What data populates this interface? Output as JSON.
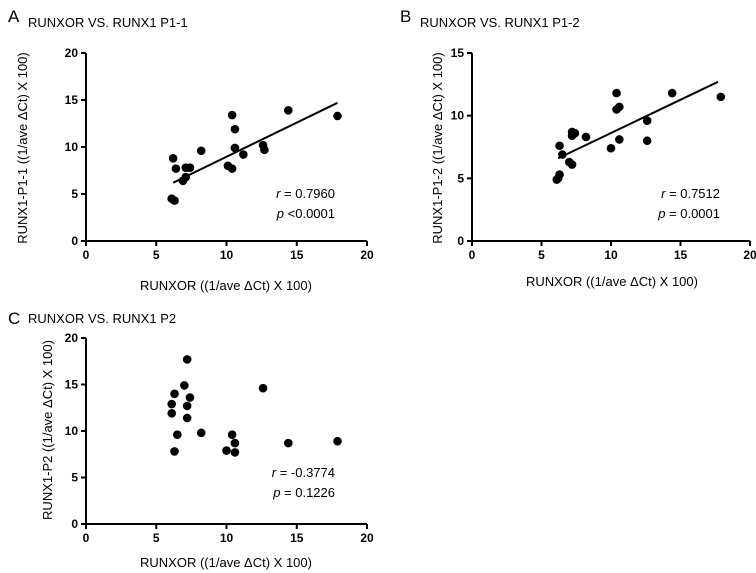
{
  "chart_data": [
    {
      "type": "scatter",
      "panel": "A",
      "title": "RUNXOR VS. RUNX1 P1-1",
      "xlabel": "RUNXOR ((1/ave ΔCt) X 100)",
      "ylabel": "RUNX1-P1-1 ((1/ave ΔCt) X 100)",
      "xlim": [
        0,
        20
      ],
      "ylim": [
        0,
        20
      ],
      "xticks": [
        0,
        5,
        10,
        15,
        20
      ],
      "yticks": [
        0,
        5,
        10,
        15,
        20
      ],
      "x_tick_labels": [
        "0",
        "5",
        "10",
        "15",
        "20"
      ],
      "y_tick_labels": [
        "0",
        "5",
        "10",
        "15",
        "20"
      ],
      "points": [
        {
          "x": 6.1,
          "y": 4.5
        },
        {
          "x": 6.3,
          "y": 4.3
        },
        {
          "x": 6.2,
          "y": 8.8
        },
        {
          "x": 6.4,
          "y": 7.7
        },
        {
          "x": 6.9,
          "y": 6.4
        },
        {
          "x": 7.1,
          "y": 6.8
        },
        {
          "x": 7.1,
          "y": 7.8
        },
        {
          "x": 7.4,
          "y": 7.8
        },
        {
          "x": 8.2,
          "y": 9.6
        },
        {
          "x": 10.1,
          "y": 8.0
        },
        {
          "x": 10.4,
          "y": 7.7
        },
        {
          "x": 10.4,
          "y": 13.4
        },
        {
          "x": 10.6,
          "y": 11.9
        },
        {
          "x": 10.6,
          "y": 9.9
        },
        {
          "x": 11.2,
          "y": 9.2
        },
        {
          "x": 12.6,
          "y": 10.2
        },
        {
          "x": 12.7,
          "y": 9.7
        },
        {
          "x": 14.4,
          "y": 13.9
        },
        {
          "x": 17.9,
          "y": 13.3
        }
      ],
      "fit_line": {
        "x": [
          6.2,
          17.9
        ],
        "y": [
          6.2,
          14.7
        ]
      },
      "stats": {
        "r_label": "r",
        "r_text": " = 0.7960",
        "p_label": "p",
        "p_text": " <0.0001"
      }
    },
    {
      "type": "scatter",
      "panel": "B",
      "title": "RUNXOR VS. RUNX1 P1-2",
      "xlabel": "RUNXOR ((1/ave ΔCt) X 100)",
      "ylabel": "RUNX1-P1-2 ((1/ave ΔCt) X 100)",
      "xlim": [
        0,
        20
      ],
      "ylim": [
        0,
        15
      ],
      "xticks": [
        0,
        5,
        10,
        15,
        20
      ],
      "yticks": [
        0,
        5,
        10,
        15
      ],
      "x_tick_labels": [
        "0",
        "5",
        "10",
        "15",
        "20"
      ],
      "y_tick_labels": [
        "0",
        "5",
        "10",
        "15"
      ],
      "points": [
        {
          "x": 6.1,
          "y": 4.9
        },
        {
          "x": 6.2,
          "y": 5.0
        },
        {
          "x": 6.3,
          "y": 5.3
        },
        {
          "x": 6.3,
          "y": 7.6
        },
        {
          "x": 6.5,
          "y": 6.9
        },
        {
          "x": 7.0,
          "y": 6.3
        },
        {
          "x": 7.2,
          "y": 6.1
        },
        {
          "x": 7.2,
          "y": 8.7
        },
        {
          "x": 7.2,
          "y": 8.4
        },
        {
          "x": 7.4,
          "y": 8.6
        },
        {
          "x": 8.2,
          "y": 8.3
        },
        {
          "x": 10.0,
          "y": 7.4
        },
        {
          "x": 10.4,
          "y": 11.8
        },
        {
          "x": 10.4,
          "y": 10.5
        },
        {
          "x": 10.6,
          "y": 10.7
        },
        {
          "x": 10.6,
          "y": 8.1
        },
        {
          "x": 12.6,
          "y": 9.6
        },
        {
          "x": 12.6,
          "y": 8.0
        },
        {
          "x": 14.4,
          "y": 11.8
        },
        {
          "x": 17.9,
          "y": 11.5
        }
      ],
      "fit_line": {
        "x": [
          6.2,
          17.7
        ],
        "y": [
          6.6,
          12.7
        ]
      },
      "stats": {
        "r_label": "r",
        "r_text": " = 0.7512",
        "p_label": "p",
        "p_text": " = 0.0001"
      }
    },
    {
      "type": "scatter",
      "panel": "C",
      "title": "RUNXOR VS. RUNX1 P2",
      "xlabel": "RUNXOR ((1/ave ΔCt) X 100)",
      "ylabel": "RUNX1-P2 ((1/ave ΔCt) X 100)",
      "xlim": [
        0,
        20
      ],
      "ylim": [
        0,
        20
      ],
      "xticks": [
        0,
        5,
        10,
        15,
        20
      ],
      "yticks": [
        0,
        5,
        10,
        15,
        20
      ],
      "x_tick_labels": [
        "0",
        "5",
        "10",
        "15",
        "20"
      ],
      "y_tick_labels": [
        "0",
        "5",
        "10",
        "15",
        "20"
      ],
      "points": [
        {
          "x": 6.1,
          "y": 12.9
        },
        {
          "x": 6.1,
          "y": 11.9
        },
        {
          "x": 6.3,
          "y": 14.0
        },
        {
          "x": 6.3,
          "y": 7.8
        },
        {
          "x": 6.5,
          "y": 9.6
        },
        {
          "x": 7.0,
          "y": 14.9
        },
        {
          "x": 7.2,
          "y": 17.7
        },
        {
          "x": 7.2,
          "y": 12.7
        },
        {
          "x": 7.2,
          "y": 11.4
        },
        {
          "x": 7.4,
          "y": 13.6
        },
        {
          "x": 8.2,
          "y": 9.8
        },
        {
          "x": 10.0,
          "y": 7.9
        },
        {
          "x": 10.4,
          "y": 9.6
        },
        {
          "x": 10.6,
          "y": 8.7
        },
        {
          "x": 10.6,
          "y": 7.7
        },
        {
          "x": 12.6,
          "y": 14.6
        },
        {
          "x": 14.4,
          "y": 8.7
        },
        {
          "x": 17.9,
          "y": 8.9
        }
      ],
      "fit_line": null,
      "stats": {
        "r_label": "r",
        "r_text": " = -0.3774",
        "p_label": "p",
        "p_text": " = 0.1226"
      }
    }
  ]
}
